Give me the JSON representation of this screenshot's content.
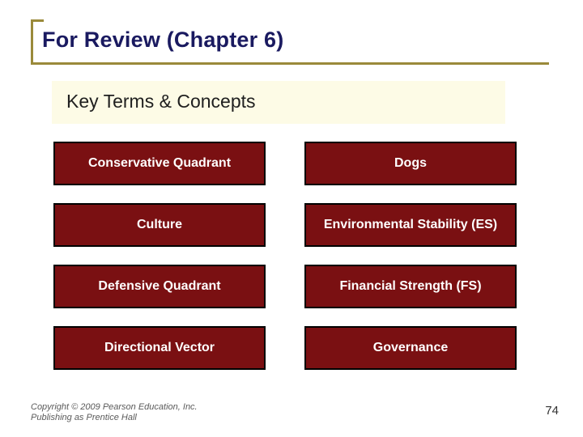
{
  "colors": {
    "rule": "#9a8a3a",
    "title_text": "#1a1a60",
    "subtitle_bg": "#fdfbe6",
    "subtitle_text": "#1f1f1f",
    "cell_bg": "#7a1012",
    "cell_text": "#ffffff",
    "footer_text": "#5a5a5a",
    "pagenum_text": "#333333"
  },
  "title": "For Review (Chapter 6)",
  "subtitle": "Key Terms & Concepts",
  "terms": {
    "rows": [
      {
        "left": "Conservative Quadrant",
        "right": "Dogs"
      },
      {
        "left": "Culture",
        "right": "Environmental Stability (ES)"
      },
      {
        "left": "Defensive Quadrant",
        "right": "Financial Strength (FS)"
      },
      {
        "left": "Directional Vector",
        "right": "Governance"
      }
    ]
  },
  "footer": {
    "line1": "Copyright © 2009 Pearson Education, Inc.",
    "line2": "Publishing as Prentice Hall"
  },
  "page_number": "74"
}
